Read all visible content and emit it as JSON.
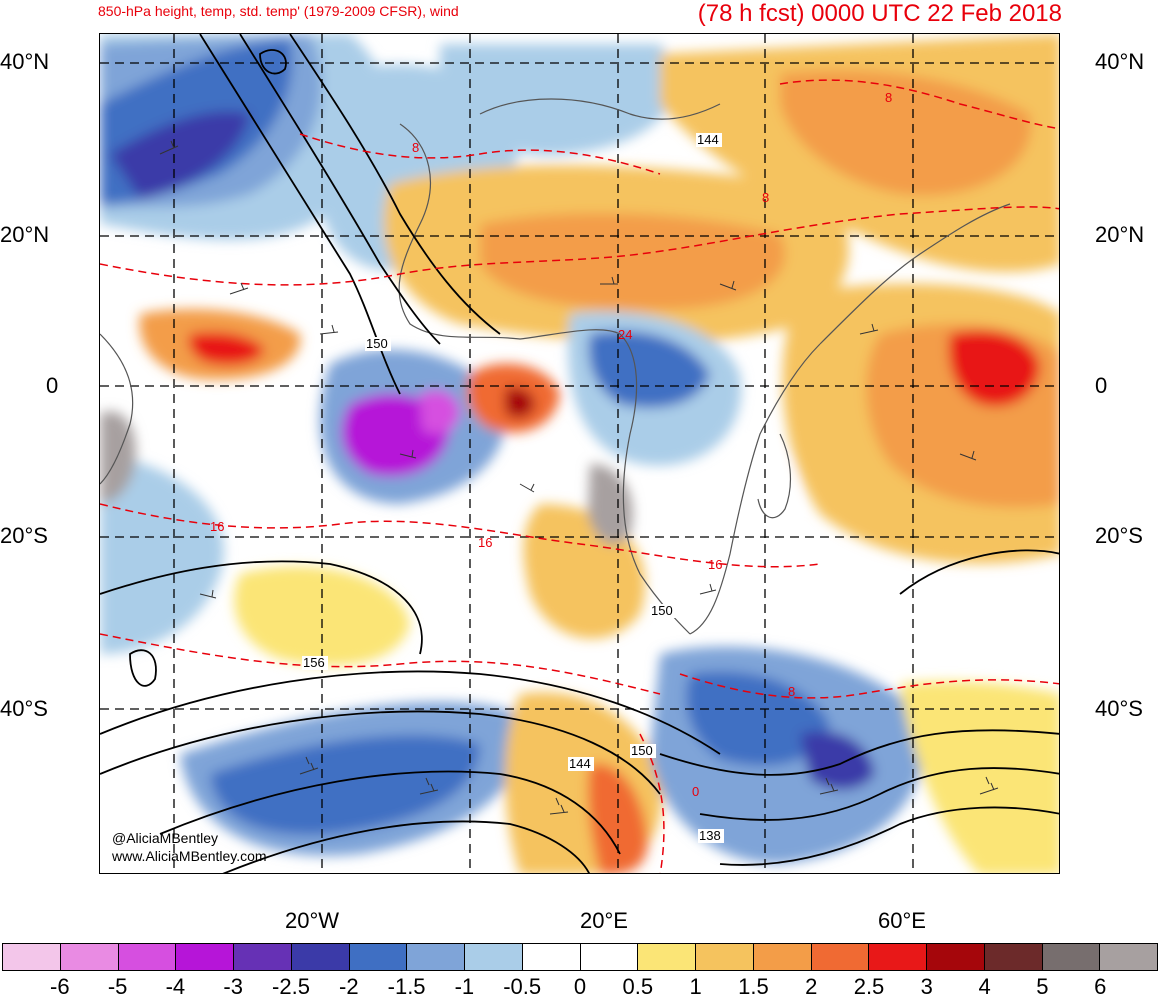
{
  "header": {
    "left_title": "850-hPa height, temp, std. temp' (1979-2009 CFSR), wind",
    "right_title": "(78 h fcst) 0000 UTC 22 Feb 2018"
  },
  "axes": {
    "lat_labels": [
      "40°N",
      "20°N",
      "0",
      "20°S",
      "40°S"
    ],
    "lon_labels": [
      "20°W",
      "20°E",
      "60°E"
    ]
  },
  "contour_labels": [
    "144",
    "150",
    "150",
    "156",
    "150",
    "144",
    "138",
    "8",
    "8",
    "16",
    "16",
    "16",
    "8",
    "0",
    "8",
    "24"
  ],
  "credits": {
    "handle": "@AliciaMBentley",
    "site": "www.AliciaMBentley.com"
  },
  "colorbar": {
    "labels": [
      "-6",
      "-5",
      "-4",
      "-3",
      "-2.5",
      "-2",
      "-1.5",
      "-1",
      "-0.5",
      "0",
      "0.5",
      "1",
      "1.5",
      "2",
      "2.5",
      "3",
      "4",
      "5",
      "6"
    ],
    "colors": [
      "#f3c6ea",
      "#e98be3",
      "#d64fe0",
      "#b615d8",
      "#6631b5",
      "#3b3aa8",
      "#3f6fc3",
      "#7fa4d8",
      "#aacde8",
      "#ffffff",
      "#ffffff",
      "#fbe576",
      "#f5c35e",
      "#f39d48",
      "#f06a33",
      "#e81818",
      "#a5060b",
      "#6c2a2a",
      "#776e6e",
      "#a7a0a0"
    ]
  }
}
